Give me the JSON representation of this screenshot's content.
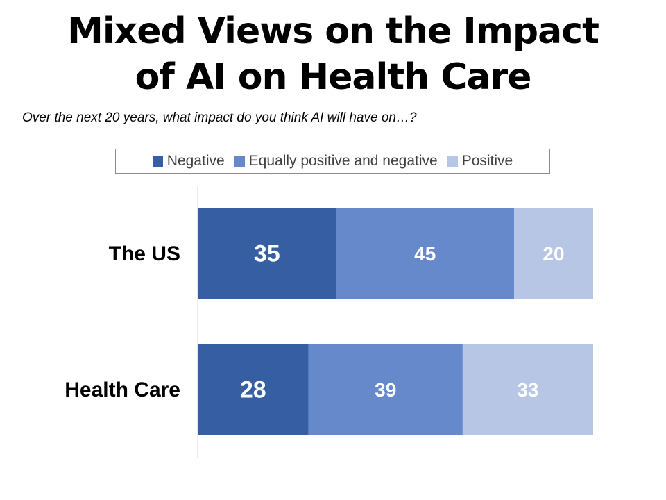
{
  "title": {
    "line1": "Mixed Views on the Impact",
    "line2": "of AI on Health Care"
  },
  "subtitle": "Over the next 20 years, what impact do you think AI will have on…?",
  "colors": {
    "negative": "#355FA2",
    "mixed": "#6689CB",
    "positive": "#B8C6E6"
  },
  "chart_data": {
    "type": "bar",
    "orientation": "horizontal",
    "stacked": true,
    "categories": [
      "The US",
      "Health Care"
    ],
    "series": [
      {
        "name": "Negative",
        "values": [
          35,
          28
        ]
      },
      {
        "name": "Equally positive and negative",
        "values": [
          45,
          39
        ]
      },
      {
        "name": "Positive",
        "values": [
          20,
          33
        ]
      }
    ],
    "value_labels": [
      [
        "35",
        "45",
        "20"
      ],
      [
        "28",
        "39",
        "33"
      ]
    ],
    "xlim": [
      0,
      100
    ],
    "legend_position": "top",
    "grid": false
  }
}
